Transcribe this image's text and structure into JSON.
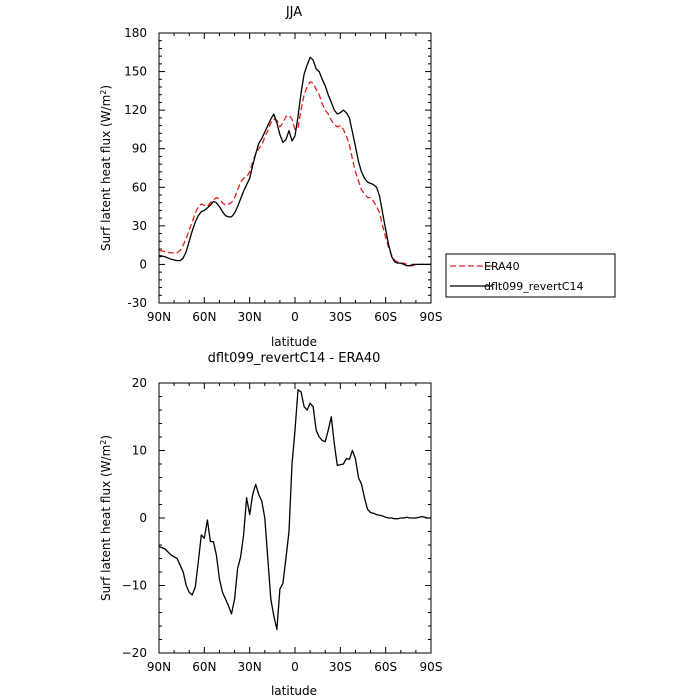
{
  "chart_data": [
    {
      "type": "line",
      "title": "JJA",
      "xlabel": "latitude",
      "ylabel": "Surf latent heat flux (W/m²)",
      "xlim": [
        90,
        -90
      ],
      "ylim": [
        -30,
        180
      ],
      "xticks": [
        90,
        60,
        30,
        0,
        -30,
        -60,
        -90
      ],
      "xtick_labels": [
        "90N",
        "60N",
        "30N",
        "0",
        "30S",
        "60S",
        "90S"
      ],
      "yticks": [
        -30,
        0,
        30,
        60,
        90,
        120,
        150,
        180
      ],
      "ytick_labels": [
        "-30",
        "0",
        "30",
        "60",
        "90",
        "120",
        "150",
        "180"
      ],
      "grid": false,
      "legend": {
        "position": "outside-right"
      },
      "series": [
        {
          "name": "ERA40",
          "color": "#e02020",
          "dash": "6,3",
          "x": [
            90,
            86,
            82,
            78,
            76,
            74,
            72,
            70,
            68,
            66,
            64,
            62,
            60,
            58,
            56,
            54,
            52,
            50,
            48,
            46,
            44,
            42,
            40,
            38,
            36,
            34,
            32,
            30,
            28,
            26,
            24,
            22,
            20,
            18,
            16,
            14,
            12,
            10,
            8,
            6,
            4,
            2,
            0,
            -2,
            -4,
            -6,
            -8,
            -10,
            -12,
            -14,
            -16,
            -18,
            -20,
            -22,
            -24,
            -26,
            -28,
            -30,
            -32,
            -34,
            -36,
            -38,
            -40,
            -42,
            -44,
            -46,
            -48,
            -50,
            -52,
            -54,
            -56,
            -58,
            -60,
            -62,
            -64,
            -66,
            -68,
            -70,
            -72,
            -74,
            -76,
            -78,
            -80,
            -84,
            -88,
            -90
          ],
          "y": [
            11,
            10,
            9,
            9,
            11,
            15,
            20,
            27,
            33,
            40,
            45,
            47,
            46,
            45,
            48,
            50,
            52,
            51,
            48,
            46,
            47,
            48,
            52,
            58,
            64,
            67,
            68,
            72,
            80,
            86,
            90,
            93,
            99,
            104,
            110,
            113,
            112,
            107,
            110,
            115,
            116,
            113,
            105,
            106,
            120,
            132,
            138,
            142,
            141,
            136,
            132,
            125,
            120,
            117,
            112,
            109,
            107,
            108,
            105,
            100,
            93,
            82,
            72,
            65,
            58,
            55,
            52,
            52,
            49,
            45,
            40,
            30,
            21,
            13,
            7,
            3,
            2,
            1,
            1,
            0,
            -1,
            -1,
            0,
            0,
            0,
            0
          ]
        },
        {
          "name": "dflt099_revertC14",
          "color": "#000000",
          "dash": "",
          "x": [
            90,
            86,
            82,
            78,
            76,
            74,
            72,
            70,
            68,
            66,
            64,
            62,
            60,
            58,
            56,
            54,
            52,
            50,
            48,
            46,
            44,
            42,
            40,
            38,
            36,
            34,
            32,
            30,
            28,
            26,
            24,
            22,
            20,
            18,
            16,
            14,
            12,
            10,
            8,
            6,
            4,
            2,
            0,
            -2,
            -4,
            -6,
            -8,
            -10,
            -12,
            -14,
            -16,
            -18,
            -20,
            -22,
            -24,
            -26,
            -28,
            -30,
            -32,
            -34,
            -36,
            -38,
            -40,
            -42,
            -44,
            -46,
            -48,
            -50,
            -52,
            -54,
            -56,
            -58,
            -60,
            -62,
            -64,
            -66,
            -68,
            -70,
            -72,
            -74,
            -76,
            -78,
            -80,
            -84,
            -88,
            -90
          ],
          "y": [
            7,
            6,
            4,
            3,
            3,
            5,
            10,
            18,
            26,
            33,
            38,
            41,
            42,
            44,
            46,
            49,
            48,
            45,
            41,
            38,
            37,
            37,
            40,
            45,
            51,
            57,
            62,
            67,
            77,
            86,
            94,
            98,
            103,
            108,
            113,
            117,
            110,
            101,
            95,
            97,
            104,
            96,
            100,
            115,
            133,
            148,
            155,
            161,
            159,
            152,
            150,
            144,
            139,
            132,
            126,
            120,
            117,
            118,
            120,
            118,
            114,
            103,
            92,
            80,
            72,
            67,
            64,
            63,
            62,
            60,
            53,
            40,
            27,
            15,
            6,
            2,
            1,
            1,
            0,
            -1,
            -1,
            0,
            0,
            0,
            0,
            0
          ]
        }
      ]
    },
    {
      "type": "line",
      "title": "dflt099_revertC14 - ERA40",
      "xlabel": "latitude",
      "ylabel": "Surf latent heat flux (W/m²)",
      "xlim": [
        90,
        -90
      ],
      "ylim": [
        -20,
        20
      ],
      "xticks": [
        90,
        60,
        30,
        0,
        -30,
        -60,
        -90
      ],
      "xtick_labels": [
        "90N",
        "60N",
        "30N",
        "0",
        "30S",
        "60S",
        "90S"
      ],
      "yticks": [
        -20,
        -10,
        0,
        10,
        20
      ],
      "ytick_labels": [
        "−20",
        "−10",
        "0",
        "10",
        "20"
      ],
      "grid": false,
      "series": [
        {
          "name": "",
          "color": "#000000",
          "dash": "",
          "x": [
            90,
            86,
            82,
            78,
            76,
            74,
            72,
            70,
            68,
            66,
            64,
            62,
            60,
            58,
            56,
            54,
            52,
            50,
            48,
            46,
            44,
            42,
            40,
            38,
            36,
            34,
            32,
            30,
            28,
            26,
            24,
            22,
            20,
            18,
            16,
            14,
            12,
            10,
            8,
            6,
            4,
            2,
            0,
            -2,
            -4,
            -6,
            -8,
            -10,
            -12,
            -14,
            -16,
            -18,
            -20,
            -22,
            -24,
            -26,
            -28,
            -30,
            -32,
            -34,
            -36,
            -38,
            -40,
            -42,
            -44,
            -46,
            -48,
            -50,
            -52,
            -54,
            -56,
            -58,
            -60,
            -62,
            -64,
            -66,
            -68,
            -70,
            -72,
            -74,
            -76,
            -78,
            -80,
            -84,
            -88,
            -90
          ],
          "y": [
            -4.2,
            -4.6,
            -5.5,
            -6.0,
            -7.0,
            -8.0,
            -10.0,
            -11.0,
            -11.4,
            -10.2,
            -6.5,
            -2.5,
            -3.0,
            -0.3,
            -3.5,
            -3.5,
            -5.5,
            -9.0,
            -11.0,
            -12.0,
            -13.0,
            -14.2,
            -12.0,
            -7.5,
            -5.8,
            -2.5,
            3.0,
            0.5,
            3.5,
            5.0,
            3.5,
            2.5,
            0.0,
            -6.0,
            -12.0,
            -14.5,
            -16.5,
            -10.5,
            -9.7,
            -6.0,
            -2.0,
            8.0,
            13.0,
            19.0,
            18.7,
            16.5,
            16.0,
            17.0,
            16.5,
            13.0,
            12.0,
            11.5,
            11.3,
            13.0,
            15.0,
            11.0,
            7.8,
            7.9,
            8.0,
            8.8,
            8.7,
            10.0,
            8.8,
            6.0,
            5.0,
            3.0,
            1.3,
            0.8,
            0.7,
            0.5,
            0.4,
            0.3,
            0.1,
            0.0,
            0.0,
            -0.1,
            -0.1,
            0.0,
            0.0,
            0.1,
            0.0,
            0.0,
            0.0,
            0.2,
            0.0,
            0.0
          ]
        }
      ]
    }
  ]
}
